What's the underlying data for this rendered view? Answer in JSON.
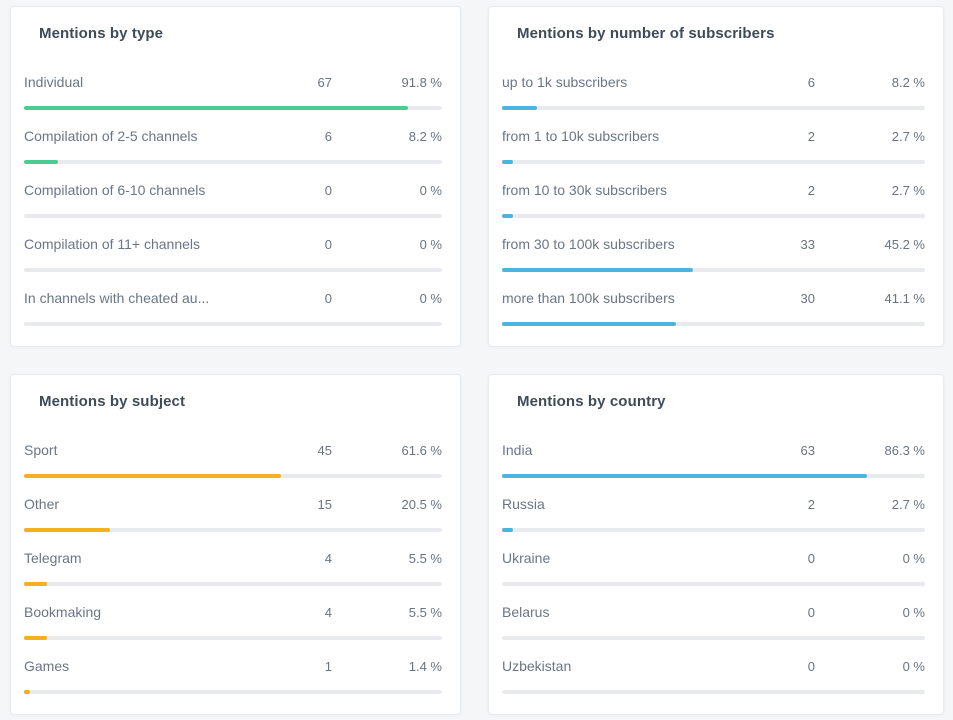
{
  "colors": {
    "background": "#f4f6f8",
    "card_background": "#ffffff",
    "card_border": "#e6ebf1",
    "track": "#e9eaed",
    "accent_green": "#4bcd92",
    "accent_blue": "#4bb5e0",
    "accent_yellow": "#f4b01e",
    "title_text": "#3f4b5b",
    "label_text": "#6a7685"
  },
  "panels": [
    {
      "title": "Mentions by type",
      "accent": "#4bcd92",
      "rows": [
        {
          "label": "Individual",
          "count": "67",
          "percent": "91.8 %",
          "value_pct": 91.8
        },
        {
          "label": "Compilation of 2-5 channels",
          "count": "6",
          "percent": "8.2 %",
          "value_pct": 8.2
        },
        {
          "label": "Compilation of 6-10 channels",
          "count": "0",
          "percent": "0 %",
          "value_pct": 0
        },
        {
          "label": "Compilation of 11+ channels",
          "count": "0",
          "percent": "0 %",
          "value_pct": 0
        },
        {
          "label": "In channels with cheated au...",
          "count": "0",
          "percent": "0 %",
          "value_pct": 0
        }
      ]
    },
    {
      "title": "Mentions by number of subscribers",
      "accent": "#4bb5e0",
      "rows": [
        {
          "label": "up to 1k subscribers",
          "count": "6",
          "percent": "8.2 %",
          "value_pct": 8.2
        },
        {
          "label": "from 1 to 10k subscribers",
          "count": "2",
          "percent": "2.7 %",
          "value_pct": 2.7
        },
        {
          "label": "from 10 to 30k subscribers",
          "count": "2",
          "percent": "2.7 %",
          "value_pct": 2.7
        },
        {
          "label": "from 30 to 100k subscribers",
          "count": "33",
          "percent": "45.2 %",
          "value_pct": 45.2
        },
        {
          "label": "more than 100k subscribers",
          "count": "30",
          "percent": "41.1 %",
          "value_pct": 41.1
        }
      ]
    },
    {
      "title": "Mentions by subject",
      "accent": "#f4b01e",
      "rows": [
        {
          "label": "Sport",
          "count": "45",
          "percent": "61.6 %",
          "value_pct": 61.6
        },
        {
          "label": "Other",
          "count": "15",
          "percent": "20.5 %",
          "value_pct": 20.5
        },
        {
          "label": "Telegram",
          "count": "4",
          "percent": "5.5 %",
          "value_pct": 5.5
        },
        {
          "label": "Bookmaking",
          "count": "4",
          "percent": "5.5 %",
          "value_pct": 5.5
        },
        {
          "label": "Games",
          "count": "1",
          "percent": "1.4 %",
          "value_pct": 1.4
        }
      ]
    },
    {
      "title": "Mentions by country",
      "accent": "#4bb5e0",
      "rows": [
        {
          "label": "India",
          "count": "63",
          "percent": "86.3 %",
          "value_pct": 86.3
        },
        {
          "label": "Russia",
          "count": "2",
          "percent": "2.7 %",
          "value_pct": 2.7
        },
        {
          "label": "Ukraine",
          "count": "0",
          "percent": "0 %",
          "value_pct": 0
        },
        {
          "label": "Belarus",
          "count": "0",
          "percent": "0 %",
          "value_pct": 0
        },
        {
          "label": "Uzbekistan",
          "count": "0",
          "percent": "0 %",
          "value_pct": 0
        }
      ]
    }
  ],
  "chart_data": [
    {
      "type": "bar",
      "title": "Mentions by type",
      "categories": [
        "Individual",
        "Compilation of 2-5 channels",
        "Compilation of 6-10 channels",
        "Compilation of 11+ channels",
        "In channels with cheated au..."
      ],
      "values": [
        67,
        6,
        0,
        0,
        0
      ],
      "percents": [
        91.8,
        8.2,
        0,
        0,
        0
      ],
      "xlim": [
        0,
        100
      ],
      "orientation": "horizontal",
      "accent_color": "#4bcd92"
    },
    {
      "type": "bar",
      "title": "Mentions by number of subscribers",
      "categories": [
        "up to 1k subscribers",
        "from 1 to 10k subscribers",
        "from 10 to 30k subscribers",
        "from 30 to 100k subscribers",
        "more than 100k subscribers"
      ],
      "values": [
        6,
        2,
        2,
        33,
        30
      ],
      "percents": [
        8.2,
        2.7,
        2.7,
        45.2,
        41.1
      ],
      "xlim": [
        0,
        100
      ],
      "orientation": "horizontal",
      "accent_color": "#4bb5e0"
    },
    {
      "type": "bar",
      "title": "Mentions by subject",
      "categories": [
        "Sport",
        "Other",
        "Telegram",
        "Bookmaking",
        "Games"
      ],
      "values": [
        45,
        15,
        4,
        4,
        1
      ],
      "percents": [
        61.6,
        20.5,
        5.5,
        5.5,
        1.4
      ],
      "xlim": [
        0,
        100
      ],
      "orientation": "horizontal",
      "accent_color": "#f4b01e"
    },
    {
      "type": "bar",
      "title": "Mentions by country",
      "categories": [
        "India",
        "Russia",
        "Ukraine",
        "Belarus",
        "Uzbekistan"
      ],
      "values": [
        63,
        2,
        0,
        0,
        0
      ],
      "percents": [
        86.3,
        2.7,
        0,
        0,
        0
      ],
      "xlim": [
        0,
        100
      ],
      "orientation": "horizontal",
      "accent_color": "#4bb5e0"
    }
  ]
}
